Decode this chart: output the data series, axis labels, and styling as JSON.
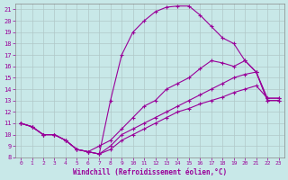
{
  "xlabel": "Windchill (Refroidissement éolien,°C)",
  "background_color": "#c8e8e8",
  "grid_color": "#b0c8c8",
  "line_color": "#990099",
  "xlim": [
    -0.5,
    23.5
  ],
  "ylim": [
    8,
    21.5
  ],
  "xticks": [
    0,
    1,
    2,
    3,
    4,
    5,
    6,
    7,
    8,
    9,
    10,
    11,
    12,
    13,
    14,
    15,
    16,
    17,
    18,
    19,
    20,
    21,
    22,
    23
  ],
  "yticks": [
    8,
    9,
    10,
    11,
    12,
    13,
    14,
    15,
    16,
    17,
    18,
    19,
    20,
    21
  ],
  "curves": [
    {
      "x": [
        0,
        1,
        2,
        3,
        4,
        5,
        6,
        7,
        8,
        9,
        10,
        11,
        12,
        13,
        14,
        15,
        16,
        17,
        18,
        19,
        20,
        21,
        22,
        23
      ],
      "y": [
        11.0,
        10.7,
        10.0,
        10.0,
        9.5,
        8.7,
        8.5,
        8.3,
        13.0,
        17.0,
        19.0,
        20.0,
        20.8,
        21.2,
        21.3,
        21.3,
        20.5,
        19.5,
        18.5,
        18.0,
        16.5,
        15.5,
        13.0,
        13.0
      ]
    },
    {
      "x": [
        0,
        1,
        2,
        3,
        4,
        5,
        6,
        7,
        8,
        9,
        10,
        11,
        12,
        13,
        14,
        15,
        16,
        17,
        18,
        19,
        20,
        21,
        22,
        23
      ],
      "y": [
        11.0,
        10.7,
        10.0,
        10.0,
        9.5,
        8.7,
        8.5,
        9.0,
        9.5,
        10.5,
        11.5,
        12.5,
        13.0,
        14.0,
        14.5,
        15.0,
        15.8,
        16.5,
        16.3,
        16.0,
        16.5,
        15.5,
        13.0,
        13.0
      ]
    },
    {
      "x": [
        0,
        1,
        2,
        3,
        4,
        5,
        6,
        7,
        8,
        9,
        10,
        11,
        12,
        13,
        14,
        15,
        16,
        17,
        18,
        19,
        20,
        21,
        22,
        23
      ],
      "y": [
        11.0,
        10.7,
        10.0,
        10.0,
        9.5,
        8.7,
        8.5,
        8.3,
        9.0,
        10.0,
        10.5,
        11.0,
        11.5,
        12.0,
        12.5,
        13.0,
        13.5,
        14.0,
        14.5,
        15.0,
        15.3,
        15.5,
        13.2,
        13.2
      ]
    },
    {
      "x": [
        0,
        1,
        2,
        3,
        4,
        5,
        6,
        7,
        8,
        9,
        10,
        11,
        12,
        13,
        14,
        15,
        16,
        17,
        18,
        19,
        20,
        21,
        22,
        23
      ],
      "y": [
        11.0,
        10.7,
        10.0,
        10.0,
        9.5,
        8.7,
        8.5,
        8.3,
        8.7,
        9.5,
        10.0,
        10.5,
        11.0,
        11.5,
        12.0,
        12.3,
        12.7,
        13.0,
        13.3,
        13.7,
        14.0,
        14.3,
        13.2,
        13.2
      ]
    }
  ]
}
